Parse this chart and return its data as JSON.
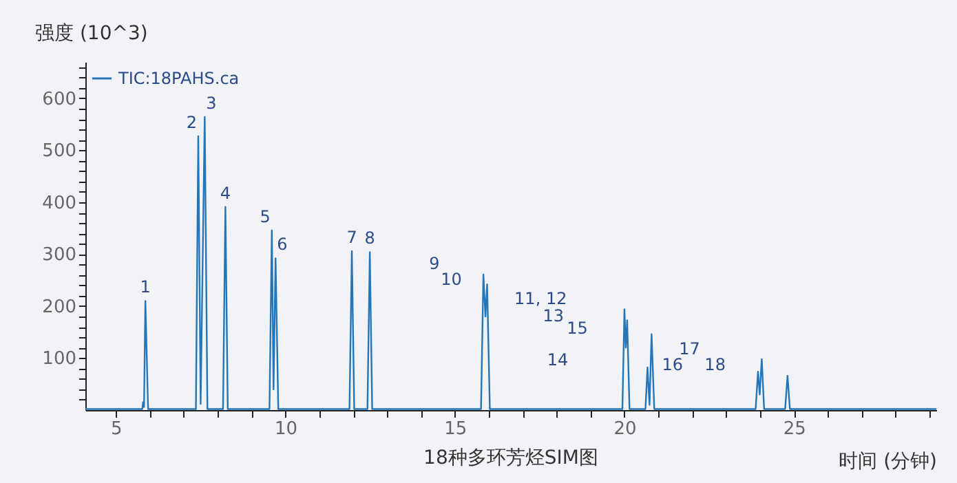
{
  "chart_data": {
    "type": "line",
    "title": "18种多环芳烃SIM图",
    "xlabel": "时间 (分钟)",
    "ylabel": "强度 (10^3)",
    "x": [
      4.1,
      5.78,
      5.8,
      5.83,
      5.87,
      5.95,
      7.36,
      7.43,
      7.5,
      7.62,
      7.7,
      8.16,
      8.23,
      8.3,
      9.53,
      9.6,
      9.65,
      9.71,
      9.79,
      11.89,
      11.96,
      12.03,
      12.42,
      12.49,
      12.56,
      15.77,
      15.84,
      15.9,
      15.95,
      16.03,
      19.94,
      20.0,
      20.04,
      20.08,
      20.15,
      20.62,
      20.68,
      20.74,
      20.8,
      20.88,
      23.87,
      23.94,
      23.99,
      24.05,
      24.12,
      24.74,
      24.81,
      24.88,
      29.2
    ],
    "series": [
      {
        "name": "TIC:18PAHS.ca",
        "color": "#2476b8",
        "values": [
          2,
          2,
          15,
          6,
          210,
          2,
          2,
          527,
          12,
          564,
          2,
          2,
          391,
          2,
          2,
          346,
          40,
          292,
          2,
          2,
          306,
          2,
          2,
          304,
          2,
          2,
          261,
          180,
          242,
          2,
          2,
          194,
          120,
          173,
          2,
          2,
          82,
          10,
          146,
          2,
          2,
          74,
          30,
          98,
          2,
          2,
          66,
          2,
          2
        ]
      }
    ],
    "xlim": [
      4.1,
      29.2
    ],
    "xticks": [
      {
        "value": 5,
        "label": "5"
      },
      {
        "value": 6,
        "label": null
      },
      {
        "value": 7,
        "label": null
      },
      {
        "value": 8,
        "label": null
      },
      {
        "value": 9,
        "label": null
      },
      {
        "value": 10,
        "label": "10"
      },
      {
        "value": 11,
        "label": null
      },
      {
        "value": 12,
        "label": null
      },
      {
        "value": 13,
        "label": null
      },
      {
        "value": 14,
        "label": null
      },
      {
        "value": 15,
        "label": "15"
      },
      {
        "value": 16,
        "label": null
      },
      {
        "value": 17,
        "label": null
      },
      {
        "value": 18,
        "label": null
      },
      {
        "value": 19,
        "label": null
      },
      {
        "value": 20,
        "label": "20"
      },
      {
        "value": 21,
        "label": null
      },
      {
        "value": 22,
        "label": null
      },
      {
        "value": 23,
        "label": null
      },
      {
        "value": 24,
        "label": null
      },
      {
        "value": 25,
        "label": "25"
      },
      {
        "value": 26,
        "label": null
      },
      {
        "value": 27,
        "label": null
      },
      {
        "value": 28,
        "label": null
      },
      {
        "value": 29,
        "label": null
      }
    ],
    "ylim": [
      0,
      670
    ],
    "yticks": [
      {
        "value": 20,
        "label": null
      },
      {
        "value": 40,
        "label": null
      },
      {
        "value": 60,
        "label": null
      },
      {
        "value": 80,
        "label": null
      },
      {
        "value": 100,
        "label": "100"
      },
      {
        "value": 120,
        "label": null
      },
      {
        "value": 140,
        "label": null
      },
      {
        "value": 160,
        "label": null
      },
      {
        "value": 180,
        "label": null
      },
      {
        "value": 200,
        "label": "200"
      },
      {
        "value": 220,
        "label": null
      },
      {
        "value": 240,
        "label": null
      },
      {
        "value": 260,
        "label": null
      },
      {
        "value": 280,
        "label": null
      },
      {
        "value": 300,
        "label": "300"
      },
      {
        "value": 320,
        "label": null
      },
      {
        "value": 340,
        "label": null
      },
      {
        "value": 360,
        "label": null
      },
      {
        "value": 380,
        "label": null
      },
      {
        "value": 400,
        "label": "400"
      },
      {
        "value": 420,
        "label": null
      },
      {
        "value": 440,
        "label": null
      },
      {
        "value": 460,
        "label": null
      },
      {
        "value": 480,
        "label": null
      },
      {
        "value": 500,
        "label": "500"
      },
      {
        "value": 520,
        "label": null
      },
      {
        "value": 540,
        "label": null
      },
      {
        "value": 560,
        "label": null
      },
      {
        "value": 580,
        "label": null
      },
      {
        "value": 600,
        "label": "600"
      },
      {
        "value": 620,
        "label": null
      },
      {
        "value": 640,
        "label": null
      },
      {
        "value": 660,
        "label": null
      }
    ],
    "grid": false,
    "legend": "top left",
    "annotations": [
      {
        "text": "1",
        "x": 5.87,
        "y": 210
      },
      {
        "text": "2",
        "x": 7.43,
        "y": 527
      },
      {
        "text": "3",
        "x": 7.62,
        "y": 564
      },
      {
        "text": "4",
        "x": 8.23,
        "y": 391
      },
      {
        "text": "5",
        "x": 9.6,
        "y": 346
      },
      {
        "text": "6",
        "x": 9.71,
        "y": 292
      },
      {
        "text": "7",
        "x": 11.96,
        "y": 306
      },
      {
        "text": "8",
        "x": 12.49,
        "y": 304
      },
      "9",
      "10",
      "11, 12",
      "13",
      "15",
      "14",
      "16",
      "17",
      "18"
    ]
  }
}
